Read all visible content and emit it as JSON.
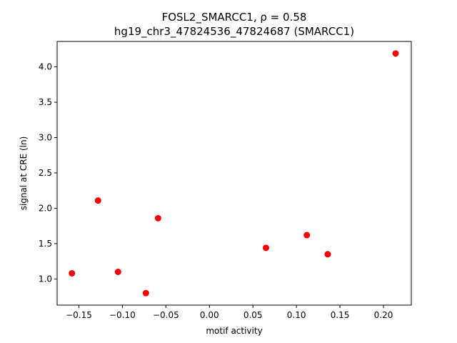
{
  "chart_data": {
    "type": "scatter",
    "title_line1": "FOSL2_SMARCC1, ρ = 0.58",
    "title_line2": "hg19_chr3_47824536_47824687 (SMARCC1)",
    "xlabel": "motif activity",
    "ylabel": "signal at CRE (ln)",
    "xlim": [
      -0.175,
      0.232
    ],
    "ylim": [
      0.63,
      4.36
    ],
    "xticks": [
      -0.15,
      -0.1,
      -0.05,
      0.0,
      0.05,
      0.1,
      0.15,
      0.2
    ],
    "xtick_labels": [
      "−0.15",
      "−0.10",
      "−0.05",
      "0.00",
      "0.05",
      "0.10",
      "0.15",
      "0.20"
    ],
    "yticks": [
      1.0,
      1.5,
      2.0,
      2.5,
      3.0,
      3.5,
      4.0
    ],
    "ytick_labels": [
      "1.0",
      "1.5",
      "2.0",
      "2.5",
      "3.0",
      "3.5",
      "4.0"
    ],
    "grid": false,
    "marker_color": "#ff0000",
    "points": [
      {
        "x": -0.158,
        "y": 1.08
      },
      {
        "x": -0.128,
        "y": 2.11
      },
      {
        "x": -0.105,
        "y": 1.1
      },
      {
        "x": -0.073,
        "y": 0.8
      },
      {
        "x": -0.059,
        "y": 1.86
      },
      {
        "x": 0.065,
        "y": 1.44
      },
      {
        "x": 0.112,
        "y": 1.62
      },
      {
        "x": 0.136,
        "y": 1.35
      },
      {
        "x": 0.214,
        "y": 4.19
      }
    ]
  }
}
